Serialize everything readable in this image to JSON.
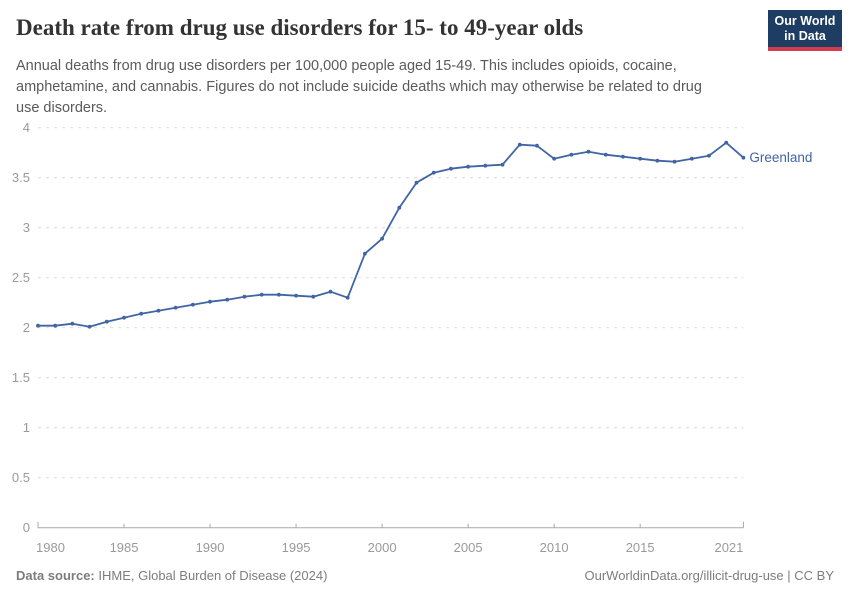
{
  "header": {
    "title": "Death rate from drug use disorders for 15- to 49-year olds",
    "subtitle": "Annual deaths from drug use disorders per 100,000 people aged 15-49. This includes opioids, cocaine, amphetamine, and cannabis. Figures do not include suicide deaths which may otherwise be related to drug use disorders.",
    "logo": {
      "line1": "Our World",
      "line2": "in Data",
      "bg_color": "#1d3d63",
      "stripe_color": "#d33b4e"
    }
  },
  "chart_data": {
    "type": "line",
    "title": "Death rate from drug use disorders for 15- to 49-year olds",
    "xlabel": "",
    "ylabel": "",
    "xlim": [
      1980,
      2021
    ],
    "ylim": [
      0,
      4
    ],
    "x_ticks": [
      1980,
      1985,
      1990,
      1995,
      2000,
      2005,
      2010,
      2015,
      2021
    ],
    "y_ticks": [
      0,
      0.5,
      1,
      1.5,
      2,
      2.5,
      3,
      3.5,
      4
    ],
    "grid": "horizontal-dashed",
    "legend_position": "end-of-line-label",
    "series": [
      {
        "name": "Greenland",
        "color": "#4165a3",
        "x": [
          1980,
          1981,
          1982,
          1983,
          1984,
          1985,
          1986,
          1987,
          1988,
          1989,
          1990,
          1991,
          1992,
          1993,
          1994,
          1995,
          1996,
          1997,
          1998,
          1999,
          2000,
          2001,
          2002,
          2003,
          2004,
          2005,
          2006,
          2007,
          2008,
          2009,
          2010,
          2011,
          2012,
          2013,
          2014,
          2015,
          2016,
          2017,
          2018,
          2019,
          2020,
          2021
        ],
        "values": [
          2.02,
          2.02,
          2.04,
          2.01,
          2.06,
          2.1,
          2.14,
          2.17,
          2.2,
          2.23,
          2.26,
          2.28,
          2.31,
          2.33,
          2.33,
          2.32,
          2.31,
          2.36,
          2.3,
          2.74,
          2.89,
          3.2,
          3.45,
          3.55,
          3.59,
          3.61,
          3.62,
          3.63,
          3.83,
          3.82,
          3.69,
          3.73,
          3.76,
          3.73,
          3.71,
          3.69,
          3.67,
          3.66,
          3.69,
          3.72,
          3.85,
          3.7
        ]
      }
    ],
    "colors": {
      "gridline": "#d9d9d9",
      "axis": "#a8a8a8",
      "tick_label": "#9a9a9a",
      "end_label": "#4165a3"
    }
  },
  "footer": {
    "datasource_label": "Data source:",
    "datasource_value": " IHME, Global Burden of Disease (2024)",
    "credit": "OurWorldinData.org/illicit-drug-use | CC BY"
  }
}
